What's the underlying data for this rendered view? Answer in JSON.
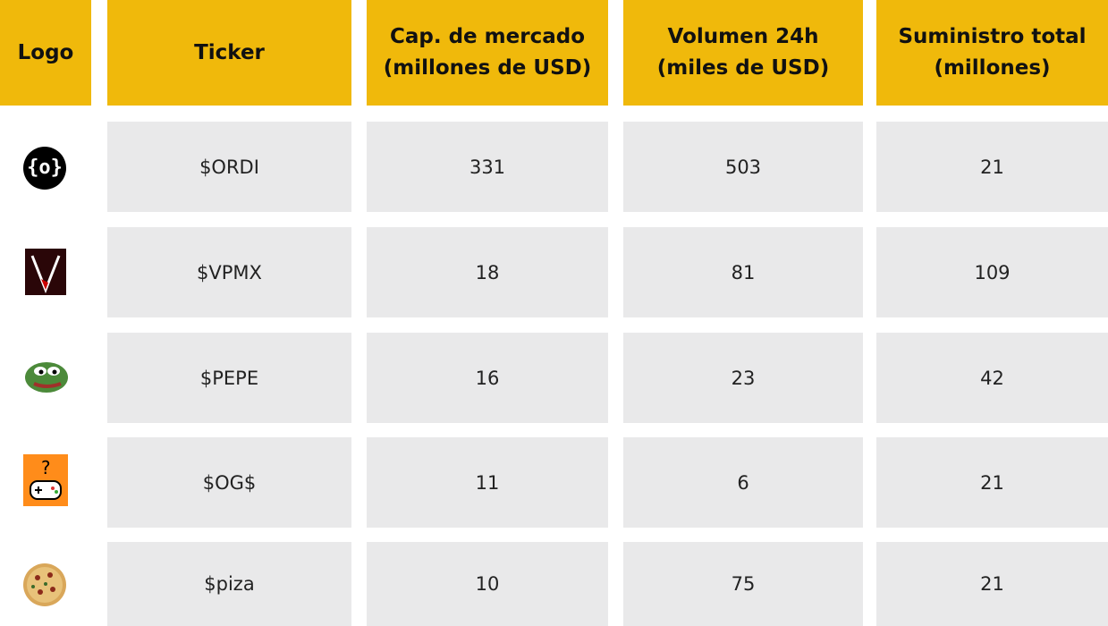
{
  "table": {
    "header": [
      [
        "Logo"
      ],
      [
        "Ticker"
      ],
      [
        "Cap. de mercado",
        "(millones de USD)"
      ],
      [
        "Volumen 24h",
        "(miles de USD)"
      ],
      [
        "Suministro total",
        "(millones)"
      ]
    ],
    "rows": [
      [
        "$ORDI",
        331,
        503,
        21
      ],
      [
        "$VPMX",
        18,
        81,
        109
      ],
      [
        "$PEPE",
        16,
        23,
        42
      ],
      [
        "$OG$",
        11,
        6,
        21
      ],
      [
        "$piza",
        10,
        75,
        21
      ]
    ]
  }
}
